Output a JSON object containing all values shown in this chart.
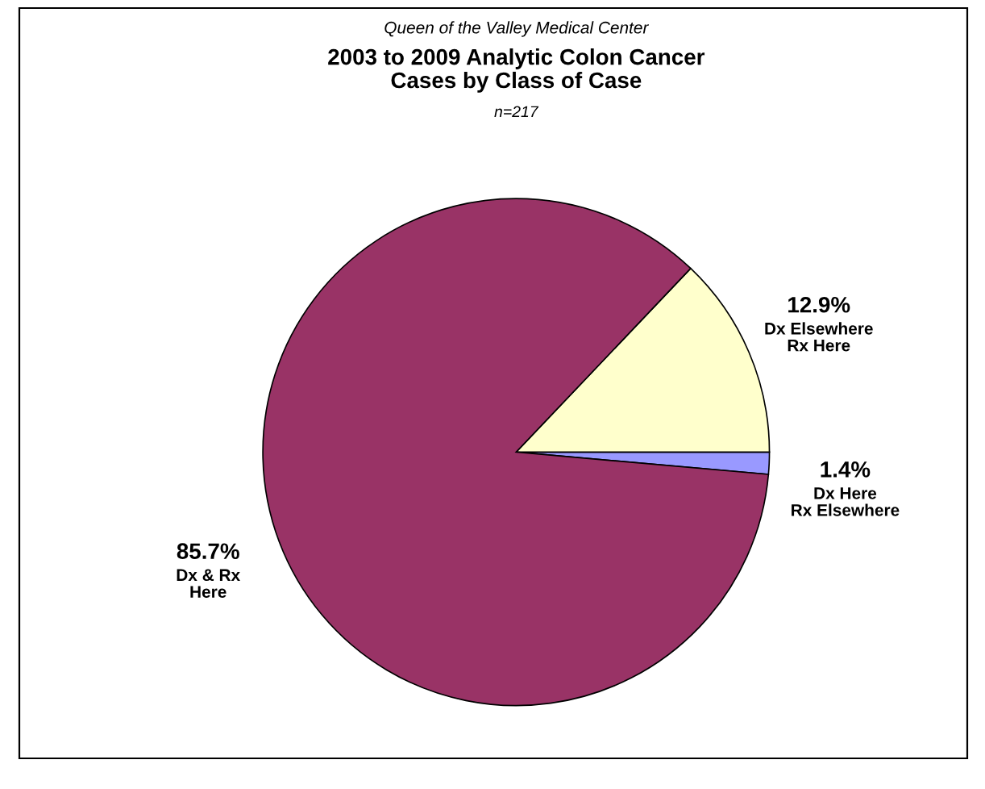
{
  "chart_data": {
    "type": "pie",
    "subtitle": "Queen of the Valley Medical Center",
    "title": "2003 to 2009 Analytic Colon Cancer\nCases by Class of Case",
    "annotations": [
      "n=217"
    ],
    "categories": [
      "Dx Here\nRx Elsewhere",
      "Dx Elsewhere\nRx Here",
      "Dx & Rx\nHere"
    ],
    "values": [
      1.4,
      12.9,
      85.7
    ],
    "value_labels": [
      "1.4%",
      "12.9%",
      "85.7%"
    ],
    "colors": [
      "#9999ff",
      "#ffffcc",
      "#993366"
    ],
    "legend": false
  }
}
